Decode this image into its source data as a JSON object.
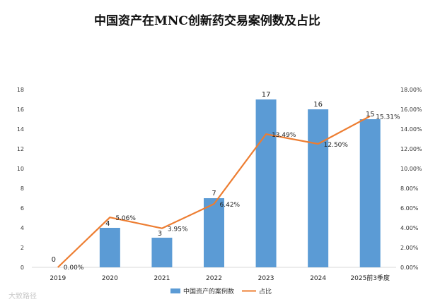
{
  "title": "中国资产在MNC创新药交易案例数及占比",
  "watermark": "大致路径",
  "chart_data": {
    "type": "bar",
    "categories": [
      "2019",
      "2020",
      "2021",
      "2022",
      "2023",
      "2024",
      "2025前3季度"
    ],
    "series": [
      {
        "name": "中国资产的案例数",
        "type": "bar",
        "axis": "left",
        "color": "#5b9bd5",
        "values": [
          0,
          4,
          3,
          7,
          17,
          16,
          15
        ],
        "labels": [
          "0",
          "4",
          "3",
          "7",
          "17",
          "16",
          "15"
        ]
      },
      {
        "name": "占比",
        "type": "line",
        "axis": "right",
        "color": "#ed7d31",
        "values": [
          0.0,
          5.06,
          3.95,
          6.42,
          13.49,
          12.5,
          15.31
        ],
        "labels": [
          "0.00%",
          "5.06%",
          "3.95%",
          "6.42%",
          "13.49%",
          "12.50%",
          "15.31%"
        ]
      }
    ],
    "y_left": {
      "min": 0,
      "max": 18,
      "ticks": [
        "0",
        "2",
        "4",
        "6",
        "8",
        "10",
        "12",
        "14",
        "16",
        "18"
      ]
    },
    "y_right": {
      "min": 0,
      "max": 18,
      "ticks": [
        "0.00%",
        "2.00%",
        "4.00%",
        "6.00%",
        "8.00%",
        "10.00%",
        "12.00%",
        "14.00%",
        "16.00%",
        "18.00%"
      ]
    },
    "legend_position": "bottom",
    "grid": false
  }
}
